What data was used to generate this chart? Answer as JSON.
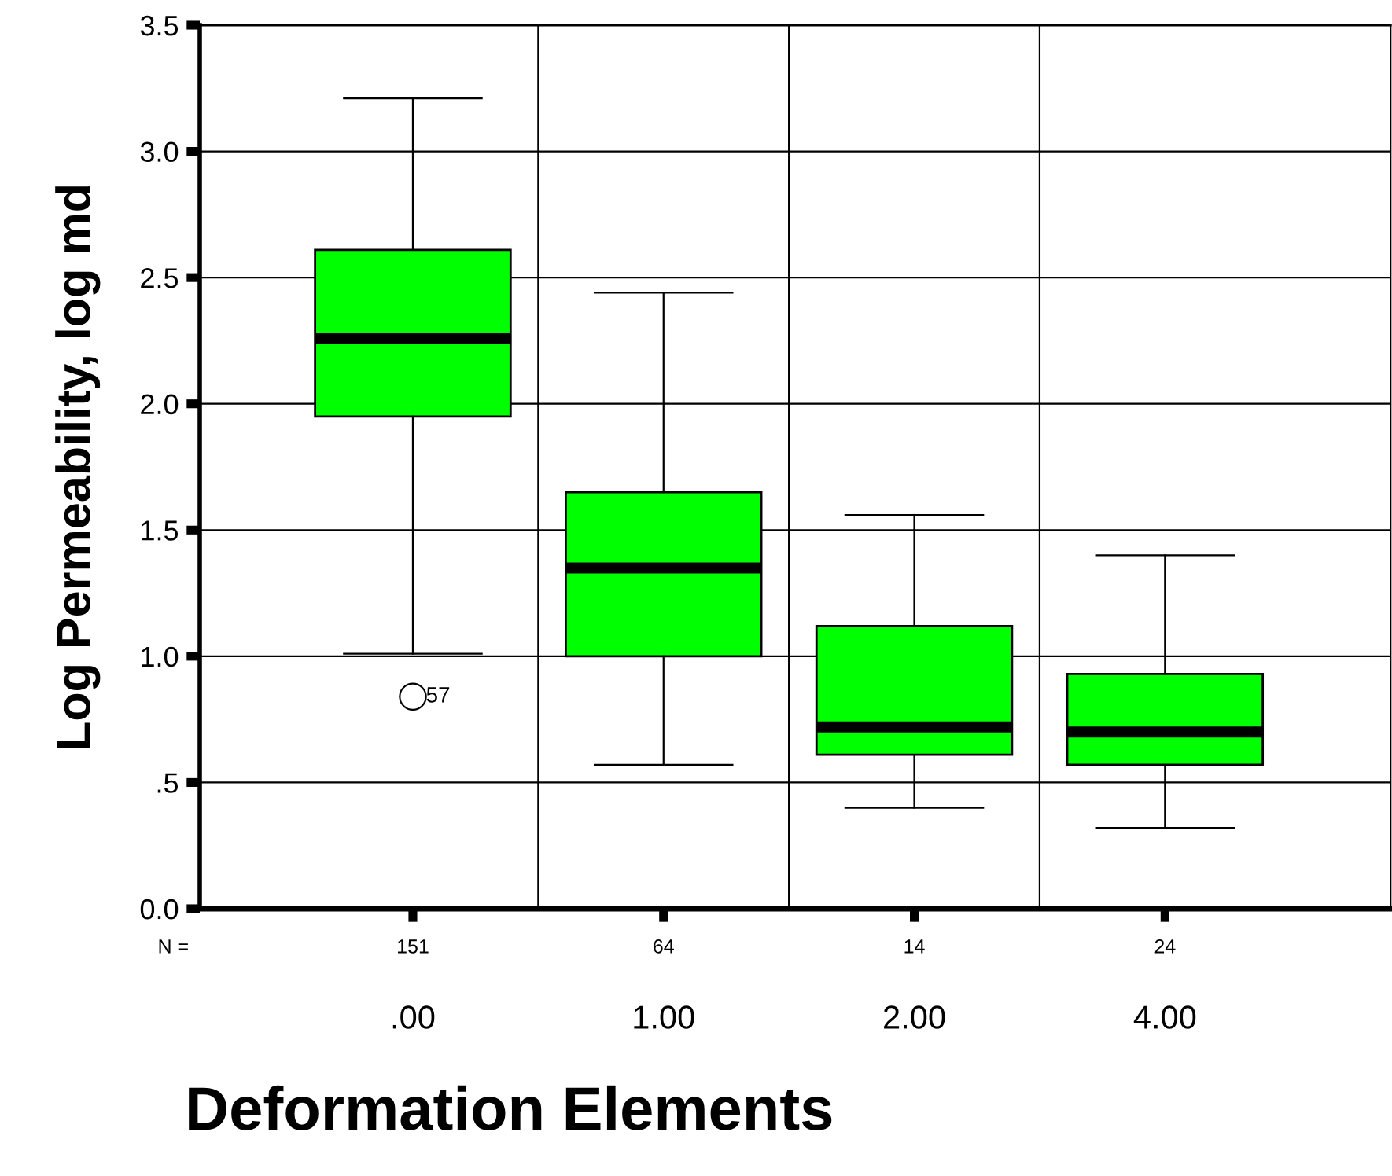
{
  "chart_data": {
    "type": "box",
    "xlabel": "Deformation Elements",
    "ylabel": "Log Permeability, log md",
    "categories": [
      ".00",
      "1.00",
      "2.00",
      "4.00"
    ],
    "boxes": [
      {
        "low": 1.01,
        "q1": 1.95,
        "median": 2.26,
        "q3": 2.61,
        "high": 3.21,
        "outliers": [
          0.84
        ]
      },
      {
        "low": 0.57,
        "q1": 1.0,
        "median": 1.35,
        "q3": 1.65,
        "high": 2.44
      },
      {
        "low": 0.4,
        "q1": 0.61,
        "median": 0.72,
        "q3": 1.12,
        "high": 1.56
      },
      {
        "low": 0.32,
        "q1": 0.57,
        "median": 0.7,
        "q3": 0.93,
        "high": 1.4
      }
    ],
    "color": "#00ff00",
    "ylim": [
      0,
      3.5
    ],
    "yticks": [
      {
        "value": 0,
        "label": "0.0"
      },
      {
        "value": 0.5,
        "label": ".5"
      },
      {
        "value": 1.0,
        "label": "1.0"
      },
      {
        "value": 1.5,
        "label": "1.5"
      },
      {
        "value": 2.0,
        "label": "2.0"
      },
      {
        "value": 2.5,
        "label": "2.5"
      },
      {
        "value": 3.0,
        "label": "3.0"
      },
      {
        "value": 3.5,
        "label": "3.5"
      }
    ],
    "grid": true,
    "annotations": [
      "N =",
      "151",
      "64",
      "14",
      "24",
      "57"
    ]
  }
}
